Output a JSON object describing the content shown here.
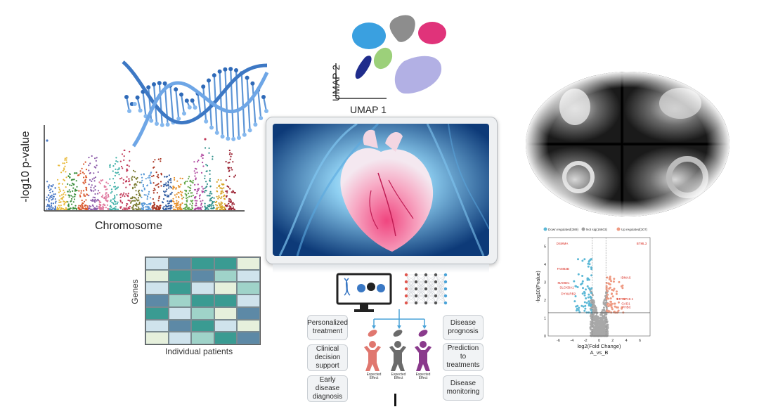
{
  "umap": {
    "x_label": "UMAP 1",
    "y_label": "UMAP 2"
  },
  "manhattan": {
    "y_label": "-log10 p-value",
    "x_label": "Chromosome"
  },
  "heatmap": {
    "y_label": "Genes",
    "x_label": "Individual patients",
    "rows": [
      [
        "#cfe3ec",
        "#5d89a6",
        "#3a9b92",
        "#3a9b92",
        "#e6f0dc"
      ],
      [
        "#e6f0dc",
        "#3a9b92",
        "#5d89a6",
        "#9fd3c9",
        "#cfe3ec"
      ],
      [
        "#cfe3ec",
        "#3a9b92",
        "#cfe3ec",
        "#e6f0dc",
        "#9fd3c9"
      ],
      [
        "#5d89a6",
        "#9fd3c9",
        "#3a9b92",
        "#3a9b92",
        "#cfe3ec"
      ],
      [
        "#3a9b92",
        "#cfe3ec",
        "#9fd3c9",
        "#e6f0dc",
        "#5d89a6"
      ],
      [
        "#cfe3ec",
        "#5d89a6",
        "#3a9b92",
        "#cfe3ec",
        "#e6f0dc"
      ],
      [
        "#e6f0dc",
        "#cfe3ec",
        "#9fd3c9",
        "#3a9b92",
        "#5d89a6"
      ]
    ]
  },
  "outcomes": {
    "left": [
      "Personalized treatment",
      "Clinical decision support",
      "Early disease diagnosis"
    ],
    "right": [
      "Disease prognosis",
      "Prediction to treatments",
      "Disease monitoring"
    ]
  },
  "effects": {
    "label": "Expected Effect",
    "colors": [
      "#e0776f",
      "#6b6b6b",
      "#8a3a8c"
    ]
  },
  "volcano": {
    "legend": [
      "Down regulated(389)",
      "Not sig(16603)",
      "Up regulated(307)"
    ],
    "legend_colors": [
      "#5bb8d6",
      "#9e9e9e",
      "#ef9a82"
    ],
    "y_label": "-log10(Pvalue)",
    "x_label": "log2(Fold Change)",
    "subtitle": "A_vs_B",
    "x_ticks": [
      "-6",
      "-4",
      "-2",
      "0",
      "2",
      "4",
      "6"
    ],
    "y_ticks": [
      "0",
      "1",
      "2",
      "3",
      "4",
      "5"
    ],
    "genes": [
      "DSMMA",
      "BTML3",
      "FAM83B",
      "IDMAS",
      "MAMDC",
      "SLCKBA1",
      "DYNLRB2",
      "KRTAP19-1",
      "GAD1",
      "PHBC"
    ]
  }
}
